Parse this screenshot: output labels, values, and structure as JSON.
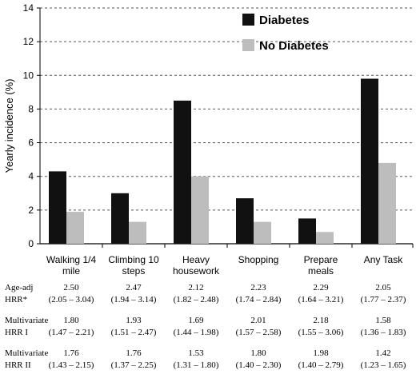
{
  "chart_data": {
    "type": "bar",
    "title": "",
    "xlabel": "",
    "ylabel": "Yearly incidence (%)",
    "ylim": [
      0,
      14
    ],
    "yticks": [
      "0",
      "2",
      "4",
      "6",
      "8",
      "10",
      "12",
      "14"
    ],
    "grid": "horizontal dashed",
    "legend_position": "top-right",
    "categories": [
      [
        "Walking 1/4",
        "mile"
      ],
      [
        "Climbing 10",
        "steps"
      ],
      [
        "Heavy",
        "housework"
      ],
      [
        "Shopping"
      ],
      [
        "Prepare",
        "meals"
      ],
      [
        "Any Task"
      ]
    ],
    "series": [
      {
        "name": "Diabetes",
        "color": "#111111",
        "values": [
          4.3,
          3.0,
          8.5,
          2.7,
          1.5,
          9.8
        ]
      },
      {
        "name": "No Diabetes",
        "color": "#bdbdbd",
        "values": [
          1.9,
          1.3,
          4.0,
          1.3,
          0.7,
          4.8
        ]
      }
    ]
  },
  "table": {
    "rows": [
      {
        "label": [
          "Age-adj",
          "HRR*"
        ],
        "cells": [
          [
            "2.50",
            "(2.05 – 3.04)"
          ],
          [
            "2.47",
            "(1.94 – 3.14)"
          ],
          [
            "2.12",
            "(1.82 – 2.48)"
          ],
          [
            "2.23",
            "(1.74 – 2.84)"
          ],
          [
            "2.29",
            "(1.64 – 3.21)"
          ],
          [
            "2.05",
            "(1.77 – 2.37)"
          ]
        ]
      },
      {
        "label": [
          "Multivariate",
          "HRR I"
        ],
        "cells": [
          [
            "1.80",
            "(1.47 – 2.21)"
          ],
          [
            "1.93",
            "(1.51 – 2.47)"
          ],
          [
            "1.69",
            "(1.44 – 1.98)"
          ],
          [
            "2.01",
            "(1.57 – 2.58)"
          ],
          [
            "2.18",
            "(1.55 – 3.06)"
          ],
          [
            "1.58",
            "(1.36 – 1.83)"
          ]
        ]
      },
      {
        "label": [
          "Multivariate",
          "HRR II"
        ],
        "cells": [
          [
            "1.76",
            "(1.43 – 2.15)"
          ],
          [
            "1.76",
            "(1.37 – 2.25)"
          ],
          [
            "1.53",
            "(1.31 – 1.80)"
          ],
          [
            "1.80",
            "(1.40 – 2.30)"
          ],
          [
            "1.98",
            "(1.40 – 2.79)"
          ],
          [
            "1.42",
            "(1.23 – 1.65)"
          ]
        ]
      }
    ]
  }
}
